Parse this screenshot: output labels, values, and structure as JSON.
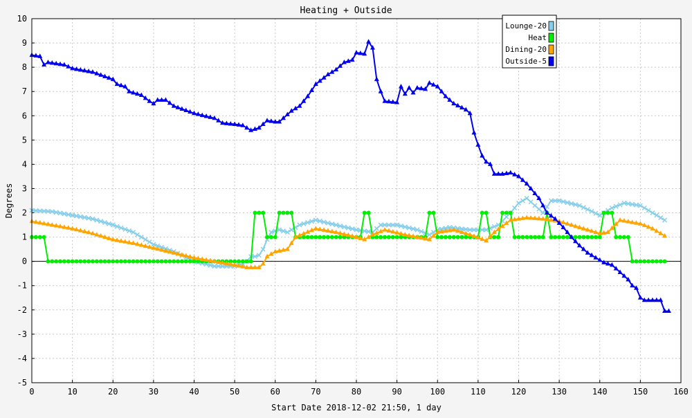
{
  "chart_data": {
    "type": "line",
    "title": "Heating + Outside",
    "xlabel": "Start Date 2018-12-02 21:50, 1 day",
    "ylabel": "Degrees",
    "xlim": [
      0,
      160
    ],
    "ylim": [
      -5,
      10
    ],
    "xticks": [
      0,
      10,
      20,
      30,
      40,
      50,
      60,
      70,
      80,
      90,
      100,
      110,
      120,
      130,
      140,
      150,
      160
    ],
    "yticks": [
      -5,
      -4,
      -3,
      -2,
      -1,
      0,
      1,
      2,
      3,
      4,
      5,
      6,
      7,
      8,
      9,
      10
    ],
    "grid": true,
    "legend_position": "top-right",
    "series": [
      {
        "name": "Lounge-20",
        "color": "#87ceeb",
        "marker": "x",
        "points": [
          [
            0,
            2.1
          ],
          [
            5,
            2.05
          ],
          [
            10,
            1.9
          ],
          [
            15,
            1.75
          ],
          [
            20,
            1.5
          ],
          [
            25,
            1.2
          ],
          [
            30,
            0.7
          ],
          [
            35,
            0.4
          ],
          [
            40,
            0.0
          ],
          [
            45,
            -0.2
          ],
          [
            50,
            -0.2
          ],
          [
            52,
            -0.1
          ],
          [
            53,
            0.0
          ],
          [
            54,
            0.2
          ],
          [
            55,
            0.2
          ],
          [
            56,
            0.25
          ],
          [
            57,
            0.5
          ],
          [
            58,
            0.9
          ],
          [
            59,
            1.2
          ],
          [
            61,
            1.3
          ],
          [
            63,
            1.2
          ],
          [
            66,
            1.5
          ],
          [
            70,
            1.7
          ],
          [
            75,
            1.5
          ],
          [
            80,
            1.3
          ],
          [
            84,
            1.2
          ],
          [
            86,
            1.5
          ],
          [
            90,
            1.5
          ],
          [
            95,
            1.3
          ],
          [
            98,
            1.1
          ],
          [
            100,
            1.3
          ],
          [
            103,
            1.4
          ],
          [
            108,
            1.3
          ],
          [
            112,
            1.3
          ],
          [
            115,
            1.5
          ],
          [
            118,
            2.0
          ],
          [
            120,
            2.4
          ],
          [
            122,
            2.6
          ],
          [
            124,
            2.3
          ],
          [
            126,
            2.0
          ],
          [
            128,
            2.5
          ],
          [
            130,
            2.5
          ],
          [
            135,
            2.3
          ],
          [
            140,
            1.9
          ],
          [
            143,
            2.2
          ],
          [
            146,
            2.4
          ],
          [
            150,
            2.3
          ],
          [
            153,
            2.0
          ],
          [
            156,
            1.7
          ]
        ]
      },
      {
        "name": "Heat",
        "color": "#00ee00",
        "marker": "circle",
        "points": [
          [
            0,
            1
          ],
          [
            3,
            1
          ],
          [
            4,
            0
          ],
          [
            54,
            0
          ],
          [
            55,
            2
          ],
          [
            57,
            2
          ],
          [
            58,
            1
          ],
          [
            60,
            1
          ],
          [
            61,
            2
          ],
          [
            64,
            2
          ],
          [
            65,
            1
          ],
          [
            81,
            1
          ],
          [
            82,
            2
          ],
          [
            83,
            2
          ],
          [
            84,
            1
          ],
          [
            97,
            1
          ],
          [
            98,
            2
          ],
          [
            99,
            2
          ],
          [
            100,
            1
          ],
          [
            110,
            1
          ],
          [
            111,
            2
          ],
          [
            112,
            2
          ],
          [
            113,
            1
          ],
          [
            115,
            1
          ],
          [
            116,
            2
          ],
          [
            118,
            2
          ],
          [
            119,
            1
          ],
          [
            126,
            1
          ],
          [
            127,
            2
          ],
          [
            128,
            1
          ],
          [
            140,
            1
          ],
          [
            141,
            2
          ],
          [
            143,
            2
          ],
          [
            144,
            1
          ],
          [
            147,
            1
          ],
          [
            148,
            0
          ],
          [
            156,
            0
          ]
        ]
      },
      {
        "name": "Dining-20",
        "color": "#ffa500",
        "marker": "triangle",
        "points": [
          [
            0,
            1.65
          ],
          [
            5,
            1.5
          ],
          [
            10,
            1.35
          ],
          [
            15,
            1.15
          ],
          [
            20,
            0.9
          ],
          [
            25,
            0.75
          ],
          [
            30,
            0.55
          ],
          [
            35,
            0.35
          ],
          [
            40,
            0.15
          ],
          [
            45,
            0.0
          ],
          [
            50,
            -0.15
          ],
          [
            53,
            -0.25
          ],
          [
            56,
            -0.25
          ],
          [
            57,
            -0.1
          ],
          [
            58,
            0.2
          ],
          [
            60,
            0.4
          ],
          [
            63,
            0.5
          ],
          [
            65,
            1.0
          ],
          [
            70,
            1.35
          ],
          [
            75,
            1.2
          ],
          [
            80,
            1.0
          ],
          [
            82,
            0.9
          ],
          [
            84,
            1.1
          ],
          [
            87,
            1.3
          ],
          [
            92,
            1.1
          ],
          [
            98,
            0.9
          ],
          [
            100,
            1.2
          ],
          [
            104,
            1.3
          ],
          [
            108,
            1.1
          ],
          [
            112,
            0.85
          ],
          [
            114,
            1.2
          ],
          [
            118,
            1.7
          ],
          [
            122,
            1.8
          ],
          [
            126,
            1.75
          ],
          [
            130,
            1.65
          ],
          [
            135,
            1.4
          ],
          [
            140,
            1.15
          ],
          [
            142,
            1.2
          ],
          [
            145,
            1.7
          ],
          [
            150,
            1.55
          ],
          [
            153,
            1.35
          ],
          [
            156,
            1.05
          ]
        ]
      },
      {
        "name": "Outside-5",
        "color": "#0000ee",
        "marker": "triangle",
        "points": [
          [
            0,
            8.5
          ],
          [
            2,
            8.45
          ],
          [
            3,
            8.1
          ],
          [
            4,
            8.2
          ],
          [
            8,
            8.1
          ],
          [
            10,
            7.95
          ],
          [
            15,
            7.8
          ],
          [
            20,
            7.5
          ],
          [
            21,
            7.3
          ],
          [
            23,
            7.2
          ],
          [
            24,
            7.0
          ],
          [
            27,
            6.85
          ],
          [
            29,
            6.6
          ],
          [
            30,
            6.5
          ],
          [
            31,
            6.65
          ],
          [
            33,
            6.65
          ],
          [
            35,
            6.4
          ],
          [
            40,
            6.1
          ],
          [
            45,
            5.9
          ],
          [
            47,
            5.7
          ],
          [
            50,
            5.65
          ],
          [
            52,
            5.6
          ],
          [
            54,
            5.4
          ],
          [
            56,
            5.5
          ],
          [
            58,
            5.8
          ],
          [
            60,
            5.75
          ],
          [
            61,
            5.75
          ],
          [
            64,
            6.2
          ],
          [
            66,
            6.4
          ],
          [
            68,
            6.8
          ],
          [
            70,
            7.3
          ],
          [
            73,
            7.7
          ],
          [
            75,
            7.9
          ],
          [
            77,
            8.2
          ],
          [
            79,
            8.3
          ],
          [
            80,
            8.6
          ],
          [
            82,
            8.55
          ],
          [
            83,
            9.05
          ],
          [
            84,
            8.8
          ],
          [
            85,
            7.5
          ],
          [
            86,
            7.0
          ],
          [
            87,
            6.6
          ],
          [
            90,
            6.55
          ],
          [
            91,
            7.2
          ],
          [
            92,
            6.9
          ],
          [
            93,
            7.15
          ],
          [
            94,
            6.95
          ],
          [
            95,
            7.15
          ],
          [
            97,
            7.1
          ],
          [
            98,
            7.35
          ],
          [
            100,
            7.2
          ],
          [
            102,
            6.8
          ],
          [
            104,
            6.5
          ],
          [
            107,
            6.25
          ],
          [
            108,
            6.1
          ],
          [
            109,
            5.3
          ],
          [
            110,
            4.8
          ],
          [
            111,
            4.35
          ],
          [
            112,
            4.1
          ],
          [
            113,
            4.0
          ],
          [
            114,
            3.6
          ],
          [
            116,
            3.6
          ],
          [
            118,
            3.65
          ],
          [
            120,
            3.5
          ],
          [
            122,
            3.2
          ],
          [
            123,
            3.0
          ],
          [
            125,
            2.6
          ],
          [
            127,
            2.0
          ],
          [
            129,
            1.75
          ],
          [
            131,
            1.4
          ],
          [
            133,
            1.0
          ],
          [
            135,
            0.65
          ],
          [
            137,
            0.35
          ],
          [
            139,
            0.15
          ],
          [
            141,
            -0.05
          ],
          [
            143,
            -0.15
          ],
          [
            145,
            -0.45
          ],
          [
            147,
            -0.75
          ],
          [
            148,
            -1.0
          ],
          [
            149,
            -1.1
          ],
          [
            150,
            -1.5
          ],
          [
            151,
            -1.6
          ],
          [
            155,
            -1.6
          ],
          [
            156,
            -2.05
          ],
          [
            157,
            -2.05
          ]
        ]
      }
    ]
  }
}
